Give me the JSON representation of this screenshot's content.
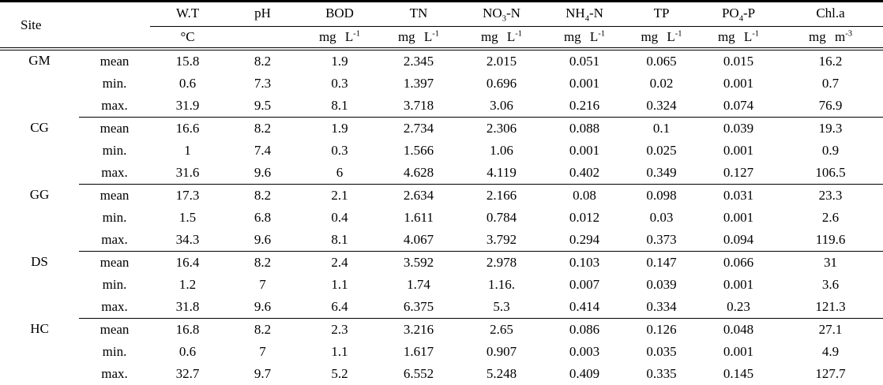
{
  "table": {
    "site_header": "Site",
    "columns": [
      {
        "pre": "W.T",
        "sub": "",
        "post": "",
        "unit_pre": "°C",
        "unit_sup": ""
      },
      {
        "pre": "pH",
        "sub": "",
        "post": "",
        "unit_pre": "",
        "unit_sup": ""
      },
      {
        "pre": "BOD",
        "sub": "",
        "post": "",
        "unit_pre": "mg L",
        "unit_sup": "-1"
      },
      {
        "pre": "TN",
        "sub": "",
        "post": "",
        "unit_pre": "mg L",
        "unit_sup": "-1"
      },
      {
        "pre": "NO",
        "sub": "3",
        "post": "-N",
        "unit_pre": "mg L",
        "unit_sup": "-1"
      },
      {
        "pre": "NH",
        "sub": "4",
        "post": "-N",
        "unit_pre": "mg L",
        "unit_sup": "-1"
      },
      {
        "pre": "TP",
        "sub": "",
        "post": "",
        "unit_pre": "mg L",
        "unit_sup": "-1"
      },
      {
        "pre": "PO",
        "sub": "4",
        "post": "-P",
        "unit_pre": "mg L",
        "unit_sup": "-1"
      },
      {
        "pre": "Chl.a",
        "sub": "",
        "post": "",
        "unit_pre": "mg m",
        "unit_sup": "-3"
      }
    ],
    "groups": [
      {
        "site": "GM",
        "rows": [
          {
            "stat": "mean",
            "values": [
              "15.8",
              "8.2",
              "1.9",
              "2.345",
              "2.015",
              "0.051",
              "0.065",
              "0.015",
              "16.2"
            ]
          },
          {
            "stat": "min.",
            "values": [
              "0.6",
              "7.3",
              "0.3",
              "1.397",
              "0.696",
              "0.001",
              "0.02",
              "0.001",
              "0.7"
            ]
          },
          {
            "stat": "max.",
            "values": [
              "31.9",
              "9.5",
              "8.1",
              "3.718",
              "3.06",
              "0.216",
              "0.324",
              "0.074",
              "76.9"
            ]
          }
        ]
      },
      {
        "site": "CG",
        "rows": [
          {
            "stat": "mean",
            "values": [
              "16.6",
              "8.2",
              "1.9",
              "2.734",
              "2.306",
              "0.088",
              "0.1",
              "0.039",
              "19.3"
            ]
          },
          {
            "stat": "min.",
            "values": [
              "1",
              "7.4",
              "0.3",
              "1.566",
              "1.06",
              "0.001",
              "0.025",
              "0.001",
              "0.9"
            ]
          },
          {
            "stat": "max.",
            "values": [
              "31.6",
              "9.6",
              "6",
              "4.628",
              "4.119",
              "0.402",
              "0.349",
              "0.127",
              "106.5"
            ]
          }
        ]
      },
      {
        "site": "GG",
        "rows": [
          {
            "stat": "mean",
            "values": [
              "17.3",
              "8.2",
              "2.1",
              "2.634",
              "2.166",
              "0.08",
              "0.098",
              "0.031",
              "23.3"
            ]
          },
          {
            "stat": "min.",
            "values": [
              "1.5",
              "6.8",
              "0.4",
              "1.611",
              "0.784",
              "0.012",
              "0.03",
              "0.001",
              "2.6"
            ]
          },
          {
            "stat": "max.",
            "values": [
              "34.3",
              "9.6",
              "8.1",
              "4.067",
              "3.792",
              "0.294",
              "0.373",
              "0.094",
              "119.6"
            ]
          }
        ]
      },
      {
        "site": "DS",
        "rows": [
          {
            "stat": "mean",
            "values": [
              "16.4",
              "8.2",
              "2.4",
              "3.592",
              "2.978",
              "0.103",
              "0.147",
              "0.066",
              "31"
            ]
          },
          {
            "stat": "min.",
            "values": [
              "1.2",
              "7",
              "1.1",
              "1.74",
              "1.16.",
              "0.007",
              "0.039",
              "0.001",
              "3.6"
            ]
          },
          {
            "stat": "max.",
            "values": [
              "31.8",
              "9.6",
              "6.4",
              "6.375",
              "5.3",
              "0.414",
              "0.334",
              "0.23",
              "121.3"
            ]
          }
        ]
      },
      {
        "site": "HC",
        "rows": [
          {
            "stat": "mean",
            "values": [
              "16.8",
              "8.2",
              "2.3",
              "3.216",
              "2.65",
              "0.086",
              "0.126",
              "0.048",
              "27.1"
            ]
          },
          {
            "stat": "min.",
            "values": [
              "0.6",
              "7",
              "1.1",
              "1.617",
              "0.907",
              "0.003",
              "0.035",
              "0.001",
              "4.9"
            ]
          },
          {
            "stat": "max.",
            "values": [
              "32.7",
              "9.7",
              "5.2",
              "6.552",
              "5.248",
              "0.409",
              "0.335",
              "0.145",
              "127.7"
            ]
          }
        ]
      }
    ]
  }
}
